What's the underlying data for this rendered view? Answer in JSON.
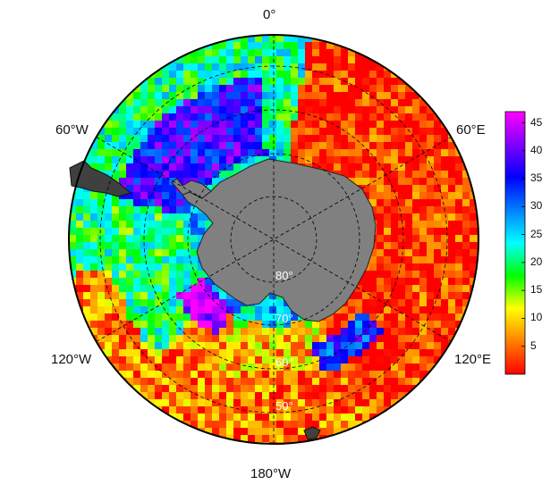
{
  "map": {
    "projection": "south polar stereographic",
    "longitude_labels": [
      {
        "key": "lon-0",
        "text": "0°"
      },
      {
        "key": "lon-60E",
        "text": "60°E"
      },
      {
        "key": "lon-120E",
        "text": "120°E"
      },
      {
        "key": "lon-180W",
        "text": "180°W"
      },
      {
        "key": "lon-120W",
        "text": "120°W"
      },
      {
        "key": "lon-60W",
        "text": "60°W"
      }
    ],
    "latitude_labels": [
      "80",
      "70",
      "60",
      "50"
    ],
    "latitude_label_suffix": "°",
    "land_color": "#808080",
    "graticule_style": "dashed"
  },
  "colorbar": {
    "min": 0,
    "max": 47,
    "ticks": [
      "5",
      "10",
      "15",
      "20",
      "25",
      "30",
      "35",
      "40",
      "45"
    ],
    "colors": [
      "#ff0000",
      "#ff8000",
      "#ffff00",
      "#00ff00",
      "#00ffff",
      "#0080ff",
      "#0000ff",
      "#8000ff",
      "#ff00ff"
    ]
  }
}
